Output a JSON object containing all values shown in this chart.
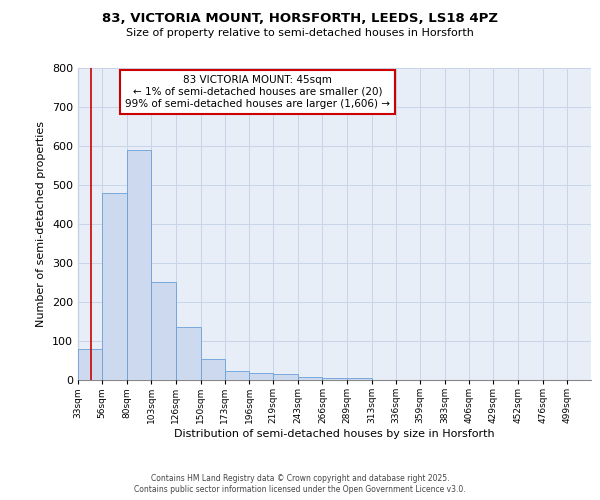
{
  "title1": "83, VICTORIA MOUNT, HORSFORTH, LEEDS, LS18 4PZ",
  "title2": "Size of property relative to semi-detached houses in Horsforth",
  "xlabel": "Distribution of semi-detached houses by size in Horsforth",
  "ylabel": "Number of semi-detached properties",
  "bin_labels": [
    "33sqm",
    "56sqm",
    "80sqm",
    "103sqm",
    "126sqm",
    "150sqm",
    "173sqm",
    "196sqm",
    "219sqm",
    "243sqm",
    "266sqm",
    "289sqm",
    "313sqm",
    "336sqm",
    "359sqm",
    "383sqm",
    "406sqm",
    "429sqm",
    "452sqm",
    "476sqm",
    "499sqm"
  ],
  "bin_edges": [
    33,
    56,
    80,
    103,
    126,
    150,
    173,
    196,
    219,
    243,
    266,
    289,
    313,
    336,
    359,
    383,
    406,
    429,
    452,
    476,
    499
  ],
  "bar_values": [
    80,
    480,
    590,
    250,
    135,
    55,
    22,
    18,
    15,
    8,
    5,
    5,
    0,
    0,
    0,
    0,
    0,
    0,
    0,
    0
  ],
  "bar_color": "#ccd9ee",
  "bar_edge_color": "#6a9fd8",
  "red_line_x": 45,
  "annotation_text": "83 VICTORIA MOUNT: 45sqm\n← 1% of semi-detached houses are smaller (20)\n99% of semi-detached houses are larger (1,606) →",
  "annotation_box_color": "#ffffff",
  "annotation_border_color": "#cc0000",
  "ylim": [
    0,
    800
  ],
  "yticks": [
    0,
    100,
    200,
    300,
    400,
    500,
    600,
    700,
    800
  ],
  "grid_color": "#c8d4e8",
  "background_color": "#e8eef8",
  "footer_line1": "Contains HM Land Registry data © Crown copyright and database right 2025.",
  "footer_line2": "Contains public sector information licensed under the Open Government Licence v3.0."
}
